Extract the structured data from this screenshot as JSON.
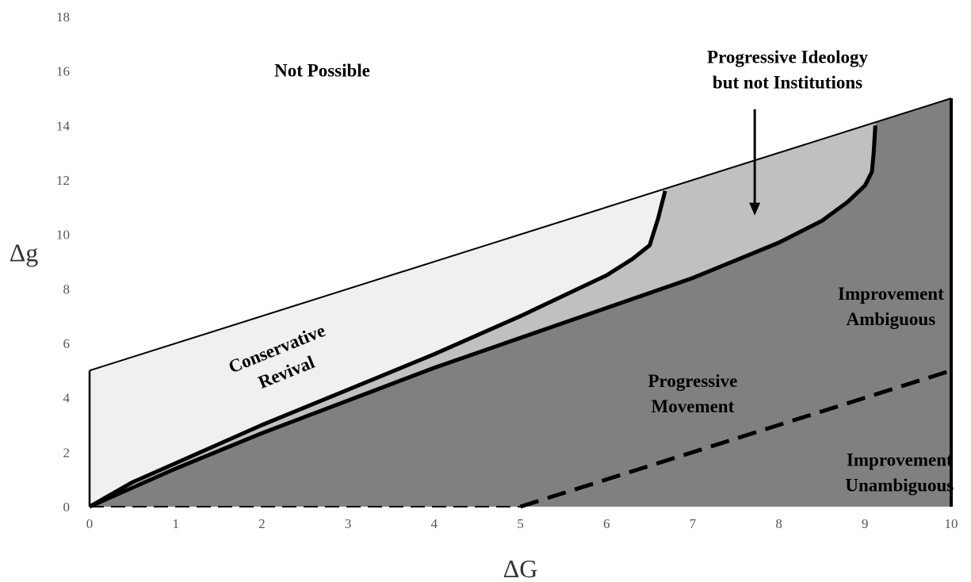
{
  "chart_data": {
    "type": "area",
    "title": "",
    "xlabel": "ΔG",
    "ylabel": "Δg",
    "xlim": [
      0,
      10
    ],
    "ylim": [
      0,
      18
    ],
    "x_ticks": [
      "0",
      "1",
      "2",
      "3",
      "4",
      "5",
      "6",
      "7",
      "8",
      "9",
      "10"
    ],
    "y_ticks": [
      "0",
      "2",
      "4",
      "6",
      "8",
      "10",
      "12",
      "14",
      "16",
      "18"
    ],
    "grid": false,
    "legend": "none",
    "colors": {
      "light_region": "#f0f0f0",
      "mid_region": "#c0c0c0",
      "dark_region": "#808080",
      "line": "#000000"
    },
    "feasibility_line": {
      "x": [
        0,
        10
      ],
      "y": [
        5,
        15
      ]
    },
    "upper_boundary_curve": {
      "x": [
        0,
        0.5,
        1,
        2,
        3,
        4,
        5,
        6,
        6.3,
        6.5,
        6.6,
        6.68
      ],
      "y": [
        0,
        0.9,
        1.6,
        3.0,
        4.3,
        5.6,
        7.0,
        8.5,
        9.1,
        9.6,
        10.6,
        11.6
      ]
    },
    "lower_boundary_curve": {
      "x": [
        0,
        1,
        2,
        3,
        4,
        5,
        6,
        7,
        8,
        8.5,
        8.8,
        9.0,
        9.08,
        9.1,
        9.12
      ],
      "y": [
        0,
        1.4,
        2.7,
        3.9,
        5.1,
        6.2,
        7.3,
        8.4,
        9.7,
        10.5,
        11.2,
        11.8,
        12.3,
        13.0,
        14.0
      ]
    },
    "dashed_boundary": {
      "x": [
        0,
        5,
        10
      ],
      "y": [
        0,
        0,
        5
      ]
    },
    "region_labels": [
      {
        "id": "not_possible",
        "lines": [
          "Not Possible"
        ],
        "x": 2.7,
        "y": 15.8,
        "rotation": 0
      },
      {
        "id": "conservative_revival",
        "lines": [
          "Conservative",
          "Revival"
        ],
        "x": 2.2,
        "y": 5.6,
        "rotation": -22
      },
      {
        "id": "progressive_ideology",
        "lines": [
          "Progressive Ideology",
          "but not Institutions"
        ],
        "x": 8.1,
        "y": 16.3,
        "rotation": 0
      },
      {
        "id": "improvement_ambiguous",
        "lines": [
          "Improvement",
          "Ambiguous"
        ],
        "x": 9.3,
        "y": 7.6,
        "rotation": 0
      },
      {
        "id": "progressive_movement",
        "lines": [
          "Progressive",
          "Movement"
        ],
        "x": 7.0,
        "y": 4.4,
        "rotation": 0
      },
      {
        "id": "improvement_unambiguous",
        "lines": [
          "Improvement",
          "Unambiguous"
        ],
        "x": 9.4,
        "y": 1.5,
        "rotation": 0
      }
    ],
    "annotation_arrow": {
      "from": [
        7.72,
        14.6
      ],
      "to": [
        7.72,
        10.7
      ]
    }
  }
}
